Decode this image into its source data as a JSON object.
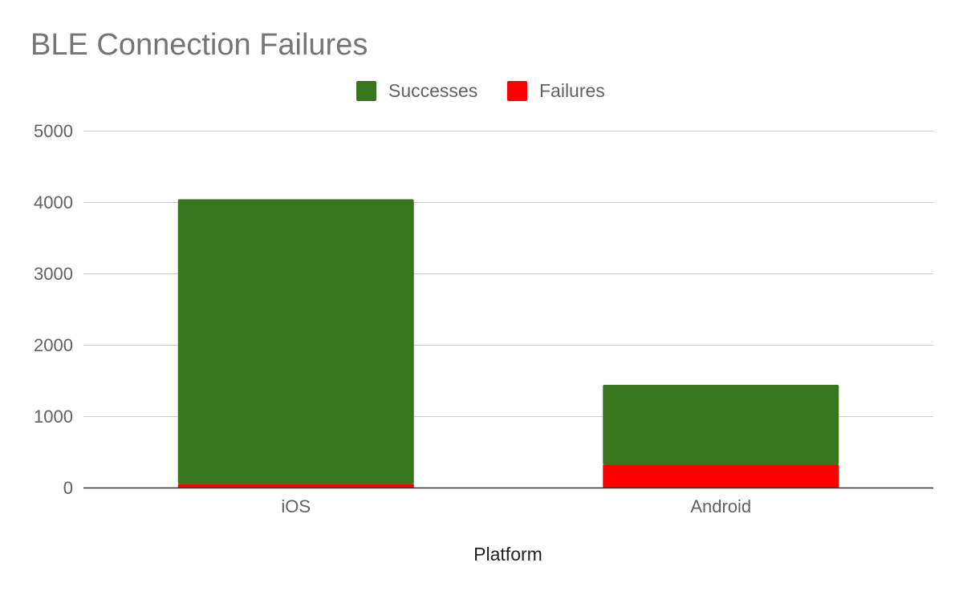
{
  "chart_data": {
    "type": "bar",
    "stacked": true,
    "title": "BLE Connection Failures",
    "xlabel": "Platform",
    "ylabel": "",
    "categories": [
      "iOS",
      "Android"
    ],
    "series": [
      {
        "name": "Failures",
        "color": "#ff0000",
        "values": [
          50,
          320
        ]
      },
      {
        "name": "Successes",
        "color": "#38761d",
        "values": [
          3990,
          1120
        ]
      }
    ],
    "legend_order": [
      "Successes",
      "Failures"
    ],
    "ylim": [
      0,
      5000
    ],
    "yticks": [
      0,
      1000,
      2000,
      3000,
      4000,
      5000
    ],
    "yticklabels": [
      "0",
      "1000",
      "2000",
      "3000",
      "4000",
      "5000"
    ],
    "grid": true,
    "legend_position": "top-center"
  }
}
